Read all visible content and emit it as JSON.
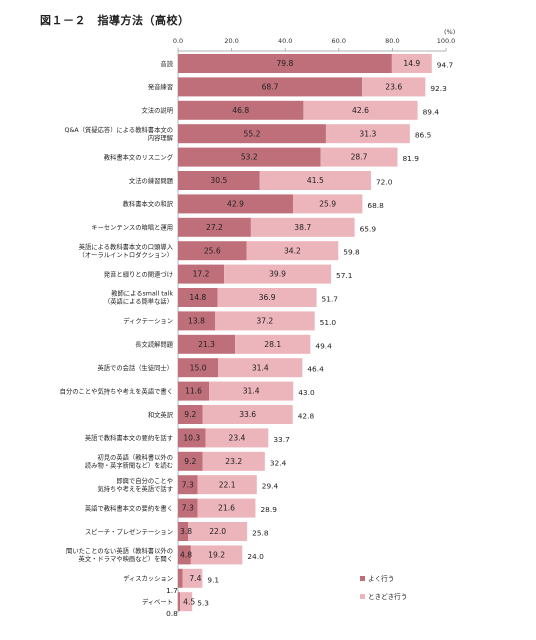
{
  "chart_data": {
    "type": "bar",
    "stacked": true,
    "orientation": "horizontal",
    "title": "図１－２　指導方法（高校）",
    "unit_label": "(%)",
    "xlim": [
      0,
      100
    ],
    "xticks": [
      "0.0",
      "20.0",
      "40.0",
      "60.0",
      "80.0",
      "100.0"
    ],
    "categories": [
      [
        "音読"
      ],
      [
        "発音練習"
      ],
      [
        "文法の説明"
      ],
      [
        "Q&A（質疑応答）による教科書本文の",
        "内容理解"
      ],
      [
        "教科書本文のリスニング"
      ],
      [
        "文法の練習問題"
      ],
      [
        "教科書本文の和訳"
      ],
      [
        "キーセンテンスの暗唱と運用"
      ],
      [
        "英語による教科書本文の口頭導入",
        "（オーラルイントロダクション）"
      ],
      [
        "発音と綴りとの関連づけ"
      ],
      [
        "教師によるsmall talk",
        "（英語による簡単な話）"
      ],
      [
        "ディクテーション"
      ],
      [
        "長文読解問題"
      ],
      [
        "英語での会話（生徒同士）"
      ],
      [
        "自分のことや気持ちや考えを英語で書く"
      ],
      [
        "和文英訳"
      ],
      [
        "英語で教科書本文の要約を話す"
      ],
      [
        "初見の英語（教科書以外の",
        "読み物・英字新聞など）を読む"
      ],
      [
        "即興で自分のことや",
        "気持ちや考えを英語で話す"
      ],
      [
        "英語で教科書本文の要約を書く"
      ],
      [
        "スピーチ・プレゼンテーション"
      ],
      [
        "聞いたことのない英語（教科書以外の",
        "英文・ドラマや映画など）を聞く"
      ],
      [
        "ディスカッション"
      ],
      [
        "ディベート"
      ]
    ],
    "series": [
      {
        "name": "よく行う",
        "color": "#bf6f7a",
        "values": [
          79.8,
          68.7,
          46.8,
          55.2,
          53.2,
          30.5,
          42.9,
          27.2,
          25.6,
          17.2,
          14.8,
          13.8,
          21.3,
          15.0,
          11.6,
          9.2,
          10.3,
          9.2,
          7.3,
          7.3,
          3.8,
          4.8,
          1.7,
          0.8
        ],
        "labels": [
          "79.8",
          "68.7",
          "46.8",
          "55.2",
          "53.2",
          "30.5",
          "42.9",
          "27.2",
          "25.6",
          "17.2",
          "14.8",
          "13.8",
          "21.3",
          "15.0",
          "11.6",
          "9.2",
          "10.3",
          "9.2",
          "7.3",
          "7.3",
          "3.8",
          "4.8",
          "1.7",
          "0.8"
        ]
      },
      {
        "name": "ときどき行う",
        "color": "#ecb4bb",
        "values": [
          14.9,
          23.6,
          42.6,
          31.3,
          28.7,
          41.5,
          25.9,
          38.7,
          34.2,
          39.9,
          36.9,
          37.2,
          28.1,
          31.4,
          31.4,
          33.6,
          23.4,
          23.2,
          22.1,
          21.6,
          22.0,
          19.2,
          7.4,
          4.5
        ],
        "labels": [
          "14.9",
          "23.6",
          "42.6",
          "31.3",
          "28.7",
          "41.5",
          "25.9",
          "38.7",
          "34.2",
          "39.9",
          "36.9",
          "37.2",
          "28.1",
          "31.4",
          "31.4",
          "33.6",
          "23.4",
          "23.2",
          "22.1",
          "21.6",
          "22.0",
          "19.2",
          "7.4",
          "4.5"
        ]
      }
    ],
    "totals": [
      "94.7",
      "92.3",
      "89.4",
      "86.5",
      "81.9",
      "72.0",
      "68.8",
      "65.9",
      "59.8",
      "57.1",
      "51.7",
      "51.0",
      "49.4",
      "46.4",
      "43.0",
      "42.8",
      "33.7",
      "32.4",
      "29.4",
      "28.9",
      "25.8",
      "24.0",
      "9.1",
      "5.3"
    ],
    "legend": {
      "position": "bottom-right",
      "entries": [
        "よく行う",
        "ときどき行う"
      ]
    },
    "grid": false
  }
}
